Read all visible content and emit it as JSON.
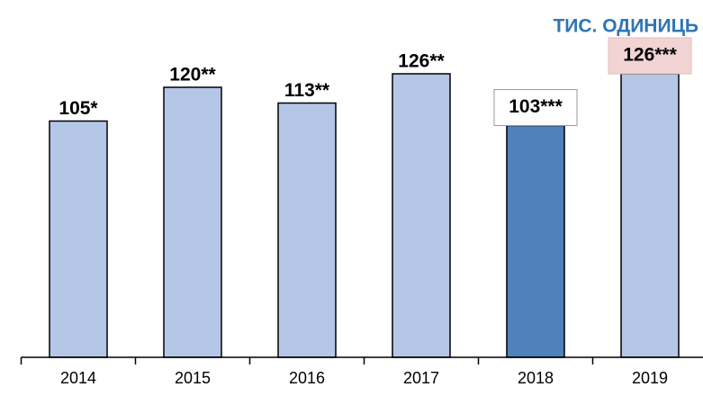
{
  "chart_data": {
    "type": "bar",
    "title": "ТИС. ОДИНИЦЬ",
    "categories": [
      "2014",
      "2015",
      "2016",
      "2017",
      "2018",
      "2019"
    ],
    "values": [
      105,
      120,
      113,
      126,
      103,
      126
    ],
    "value_labels": [
      "105*",
      "120**",
      "113**",
      "126**",
      "103***",
      "126***"
    ],
    "colors": [
      "#b4c7e7",
      "#b4c7e7",
      "#b4c7e7",
      "#b4c7e7",
      "#4f81bd",
      "#b4c7e7"
    ],
    "label_boxes": [
      null,
      null,
      null,
      null,
      "#ffffff",
      "#f2d4d4"
    ]
  }
}
